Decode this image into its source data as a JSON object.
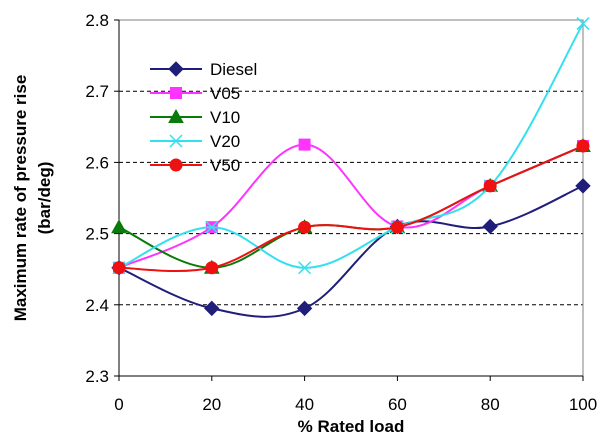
{
  "chart_data": {
    "type": "line",
    "title": "",
    "xlabel": "% Rated load",
    "ylabel_line1": "Maximum rate of pressure rise",
    "ylabel_line2": "(bar/deg)",
    "x": [
      0,
      20,
      40,
      60,
      80,
      100
    ],
    "xlim": [
      0,
      100
    ],
    "ylim": [
      2.3,
      2.8
    ],
    "xticks": [
      "0",
      "20",
      "40",
      "60",
      "80",
      "100"
    ],
    "yticks": [
      "2.3",
      "2.4",
      "2.5",
      "2.6",
      "2.7",
      "2.8"
    ],
    "grid": "horizontal dashed",
    "legend_position": "top-left",
    "series": [
      {
        "name": "Diesel",
        "color": "#1f1f7a",
        "marker": "diamond",
        "values": [
          2.452,
          2.395,
          2.395,
          2.51,
          2.51,
          2.567
        ]
      },
      {
        "name": "V05",
        "color": "#ff33ff",
        "marker": "square",
        "values": [
          2.452,
          2.509,
          2.625,
          2.51,
          2.567,
          2.623
        ]
      },
      {
        "name": "V10",
        "color": "#0a7a0a",
        "marker": "triangle",
        "values": [
          2.509,
          2.452,
          2.509,
          2.509,
          2.567,
          2.623
        ]
      },
      {
        "name": "V20",
        "color": "#33e0ee",
        "marker": "x",
        "values": [
          2.452,
          2.509,
          2.452,
          2.509,
          2.567,
          2.795
        ]
      },
      {
        "name": "V50",
        "color": "#ee1111",
        "marker": "circle",
        "values": [
          2.452,
          2.452,
          2.509,
          2.509,
          2.567,
          2.623
        ]
      }
    ]
  }
}
